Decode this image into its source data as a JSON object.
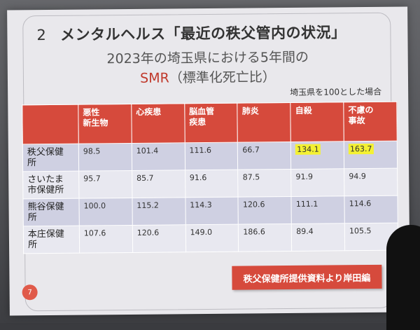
{
  "slide": {
    "heading_num": "2",
    "heading_text": "メンタルヘルス「最近の秩父管内の状況」",
    "subtitle_line1": "2023年の埼玉県における5年間の",
    "subtitle_smr": "SMR",
    "subtitle_rest": "（標準化死亡比）",
    "note": "埼玉県を100とした場合",
    "credit": "秩父保健所提供資料より岸田編",
    "page": "7"
  },
  "table": {
    "columns": [
      "",
      "悪性\n新生物",
      "心疾患",
      "脳血管\n疾患",
      "肺炎",
      "自殺",
      "不慮の\n事故"
    ],
    "rows": [
      {
        "label": "秩父保健\n所",
        "values": [
          "98.5",
          "101.4",
          "111.6",
          "66.7",
          "134.1",
          "163.7"
        ]
      },
      {
        "label": "さいたま\n市保健所",
        "values": [
          "95.7",
          "85.7",
          "91.6",
          "87.5",
          "91.9",
          "94.9"
        ]
      },
      {
        "label": "熊谷保健\n所",
        "values": [
          "100.0",
          "115.2",
          "114.3",
          "120.6",
          "111.1",
          "114.6"
        ]
      },
      {
        "label": "本庄保健\n所",
        "values": [
          "107.6",
          "120.6",
          "149.0",
          "186.6",
          "89.4",
          "105.5"
        ]
      }
    ],
    "highlight_color": "#f4f132"
  },
  "colors": {
    "accent": "#d64a3c"
  }
}
